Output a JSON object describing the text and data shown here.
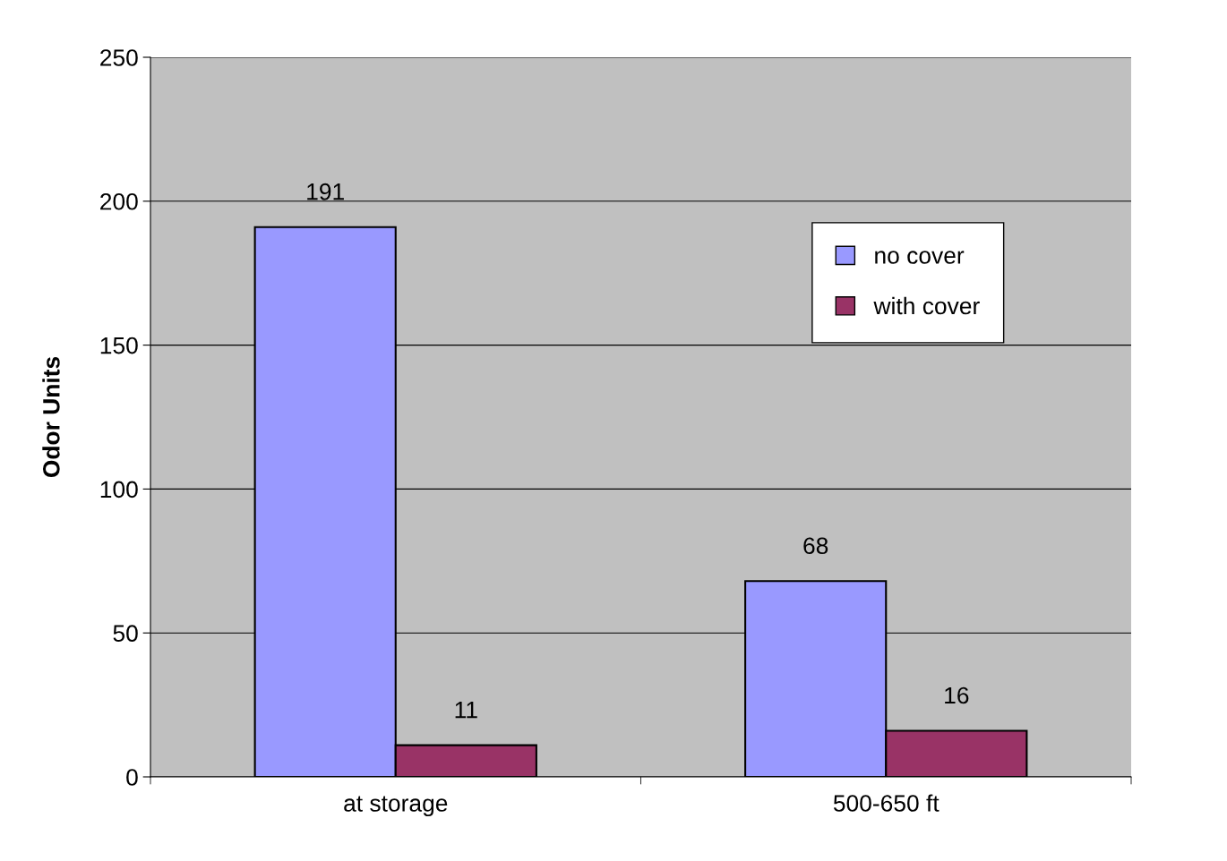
{
  "chart_data": {
    "type": "bar",
    "ylabel": "Odor Units",
    "categories": [
      "at storage",
      "500-650 ft"
    ],
    "series": [
      {
        "name": "no cover",
        "color": "#9999ff",
        "values": [
          191,
          68
        ]
      },
      {
        "name": "with cover",
        "color": "#993366",
        "values": [
          11,
          16
        ]
      }
    ],
    "ylim": [
      0,
      250
    ],
    "yticks": [
      0,
      50,
      100,
      150,
      200,
      250
    ],
    "grid": "y",
    "legend": "top right",
    "data_labels": true
  }
}
